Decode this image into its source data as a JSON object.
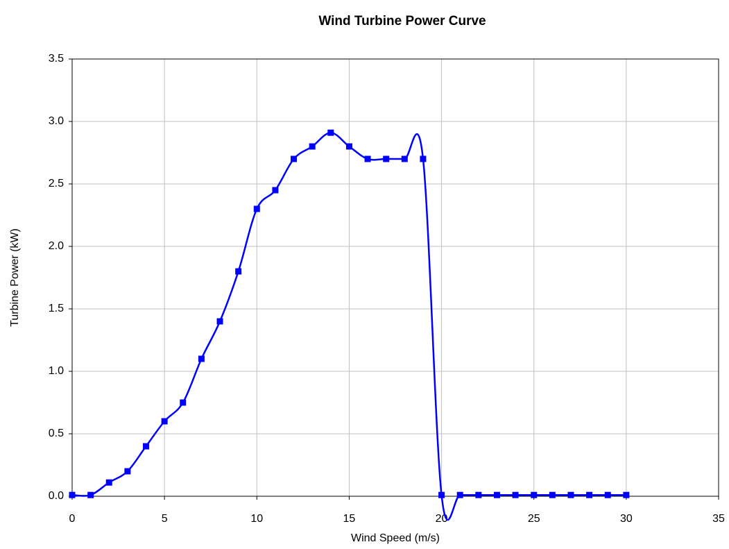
{
  "chart_data": {
    "type": "line",
    "title": "Wind Turbine Power Curve",
    "x_label": "Wind Speed (m/s)",
    "y_label": "Turbine Power (kW)",
    "x": [
      0,
      1,
      2,
      3,
      4,
      5,
      6,
      7,
      8,
      9,
      10,
      11,
      12,
      13,
      14,
      15,
      16,
      17,
      18,
      19,
      20,
      21,
      22,
      23,
      24,
      25,
      26,
      27,
      28,
      29,
      30
    ],
    "values": [
      0.01,
      0.01,
      0.11,
      0.2,
      0.4,
      0.6,
      0.75,
      1.1,
      1.4,
      1.8,
      2.3,
      2.45,
      2.7,
      2.8,
      2.91,
      2.8,
      2.7,
      2.7,
      2.7,
      2.7,
      0.01,
      0.01,
      0.01,
      0.01,
      0.01,
      0.01,
      0.01,
      0.01,
      0.01,
      0.01,
      0.01
    ],
    "color": "#0000ff",
    "smooth": true,
    "grid": true,
    "xlim": [
      0,
      35
    ],
    "xticks": [
      0,
      5,
      10,
      15,
      20,
      25,
      30,
      35
    ],
    "ylim": [
      0,
      3.5
    ],
    "yticks": [
      {
        "value": 0,
        "label": "0.0"
      },
      0.5,
      {
        "value": 1,
        "label": "1.0"
      },
      1.5,
      {
        "value": 2,
        "label": "2.0"
      },
      2.5,
      {
        "value": 3,
        "label": "3.0"
      },
      3.5
    ]
  }
}
